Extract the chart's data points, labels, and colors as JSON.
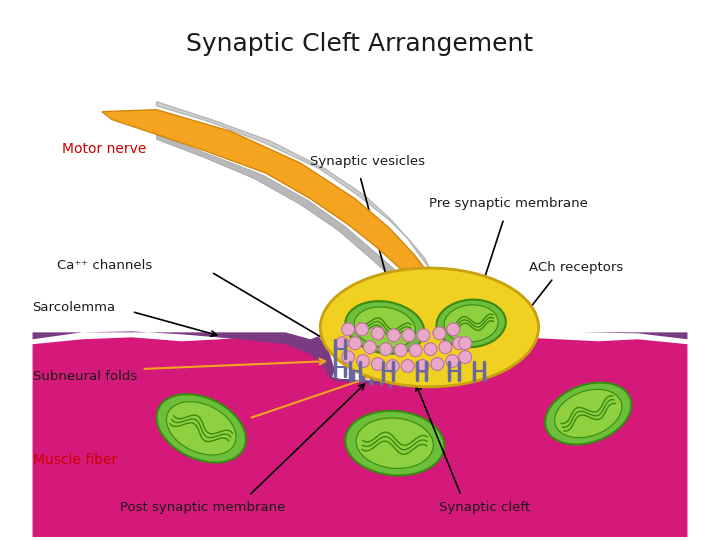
{
  "title": "Synaptic Cleft Arrangement",
  "title_fontsize": 18,
  "title_color": "#1a1a1a",
  "background_color": "#ffffff",
  "labels": {
    "motor_nerve": {
      "text": "Motor nerve",
      "color": "#cc0000"
    },
    "synaptic_vesicles": {
      "text": "Synaptic vesicles",
      "color": "#1a1a1a"
    },
    "pre_synaptic": {
      "text": "Pre synaptic membrane",
      "color": "#1a1a1a"
    },
    "ca_channels": {
      "text": "Ca⁺⁺ channels",
      "color": "#1a1a1a"
    },
    "ach_receptors": {
      "text": "ACh receptors",
      "color": "#1a1a1a"
    },
    "sarcolemma": {
      "text": "Sarcolemma",
      "color": "#1a1a1a"
    },
    "subneural_folds": {
      "text": "Subneural folds",
      "color": "#1a1a1a"
    },
    "muscle_fiber": {
      "text": "Muscle fiber",
      "color": "#cc0000"
    },
    "post_synaptic": {
      "text": "Post synaptic membrane",
      "color": "#1a1a1a"
    },
    "synaptic_cleft": {
      "text": "Synaptic cleft",
      "color": "#1a1a1a"
    }
  },
  "colors": {
    "nerve_orange": "#F5A420",
    "nerve_dark_orange": "#D4860A",
    "nerve_gray": "#B8B8B8",
    "nerve_gray2": "#D0CFCF",
    "muscle_magenta": "#D4197A",
    "muscle_pink": "#E0208A",
    "membrane_purple": "#7A3B82",
    "terminal_yellow": "#F0D020",
    "terminal_edge": "#C8A010",
    "mitochondria_outer": "#6BBF3A",
    "mitochondria_dark": "#3A8A10",
    "small_vesicle": "#E8A8C8",
    "vesicle_edge": "#C070A0",
    "receptor_color": "#6868A0",
    "arrow_color": "#1a1a1a",
    "orange_arrow": "#F5A420",
    "cleft_white": "#ffffff"
  }
}
